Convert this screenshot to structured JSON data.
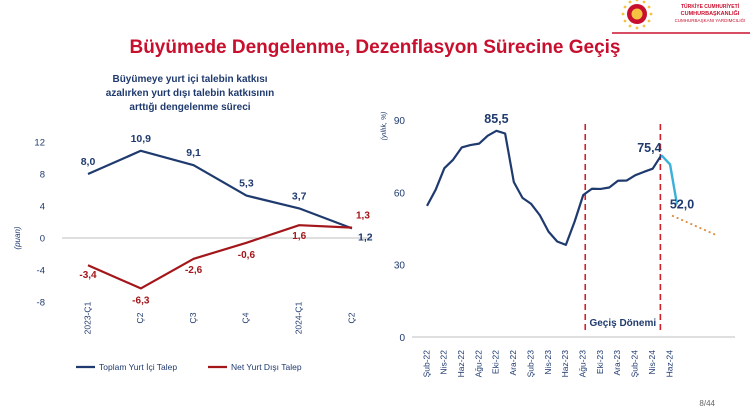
{
  "header": {
    "brand_lines": [
      "TÜRKİYE CUMHURİYETİ",
      "CUMHURBAŞKANLIĞI",
      "CUMHURBAŞKANI YARDIMCILIĞI"
    ],
    "brand_color": "#c8102e"
  },
  "slide": {
    "title": "Büyümede Dengelenme, Dezenflasyon Sürecine Geçiş",
    "page_number": "8/44"
  },
  "colors": {
    "title_red": "#c8102e",
    "navy": "#1f3a6e",
    "dark_red": "#a3161a",
    "light_blue": "#3bb1d9",
    "orange_dotted": "#e08a3c",
    "dashed_red": "#d11f2b",
    "grid": "#d9d9d9"
  },
  "chart_data": [
    {
      "type": "line",
      "title_lines": [
        "Büyümeye yurt içi talebin katkısı",
        "azalırken yurt dışı talebin katkısının",
        "arttığı dengelenme süreci"
      ],
      "ylabel": "(puan)",
      "xlabel": "",
      "ylim": [
        -8,
        12
      ],
      "yticks": [
        "12",
        "8",
        "4",
        "0",
        "-4",
        "-8"
      ],
      "categories": [
        "2023-Ç1",
        "Ç2",
        "Ç3",
        "Ç4",
        "2024-Ç1",
        "Ç2"
      ],
      "series": [
        {
          "name": "Toplam Yurt İçi Talep",
          "values": [
            8.0,
            10.9,
            9.1,
            5.3,
            3.7,
            1.2
          ],
          "labels": [
            "8,0",
            "10,9",
            "9,1",
            "5,3",
            "3,7",
            "1,2"
          ]
        },
        {
          "name": "Net Yurt Dışı Talep",
          "values": [
            -3.4,
            -6.3,
            -2.6,
            -0.6,
            1.6,
            1.3
          ],
          "labels": [
            "-3,4",
            "-6,3",
            "-2,6",
            "-0,6",
            "1,6",
            "1,3"
          ]
        }
      ],
      "grid": false,
      "legend_position": "bottom"
    },
    {
      "type": "line",
      "title": "",
      "ylabel": "(yıllık, %)",
      "xlabel": "",
      "ylim": [
        0,
        90
      ],
      "yticks": [
        "90",
        "60",
        "30",
        "0"
      ],
      "x_tick_labels": [
        "Şub-22",
        "Nis-22",
        "Haz-22",
        "Ağu-22",
        "Eki-22",
        "Ara-22",
        "Şub-23",
        "Nis-23",
        "Haz-23",
        "Ağu-23",
        "Eki-23",
        "Ara-23",
        "Şub-24",
        "Nis-24",
        "Haz-24"
      ],
      "x_months": [
        "Şub-22",
        "Mar-22",
        "Nis-22",
        "May-22",
        "Haz-22",
        "Tem-22",
        "Ağu-22",
        "Eyl-22",
        "Eki-22",
        "Kas-22",
        "Ara-22",
        "Oca-23",
        "Şub-23",
        "Mar-23",
        "Nis-23",
        "May-23",
        "Haz-23",
        "Tem-23",
        "Ağu-23",
        "Eyl-23",
        "Eki-23",
        "Kas-23",
        "Ara-23",
        "Oca-24",
        "Şub-24",
        "Mar-24",
        "Nis-24",
        "May-24",
        "Haz-24",
        "Tem-24"
      ],
      "series": [
        {
          "name": "",
          "style": "solid-navy",
          "x": [
            "Şub-22",
            "Mar-22",
            "Nis-22",
            "May-22",
            "Haz-22",
            "Tem-22",
            "Ağu-22",
            "Eyl-22",
            "Eki-22",
            "Kas-22",
            "Ara-22",
            "Oca-23",
            "Şub-23",
            "Mar-23",
            "Nis-23",
            "May-23",
            "Haz-23",
            "Tem-23",
            "Ağu-23",
            "Eyl-23",
            "Eki-23",
            "Kas-23",
            "Ara-23",
            "Oca-24",
            "Şub-24",
            "Mar-24",
            "Nis-24",
            "May-24"
          ],
          "values": [
            54.4,
            61.1,
            70.0,
            73.5,
            78.6,
            79.6,
            80.2,
            83.5,
            85.5,
            84.4,
            64.3,
            57.7,
            55.2,
            50.5,
            43.7,
            39.6,
            38.2,
            47.8,
            58.9,
            61.5,
            61.4,
            62.0,
            64.8,
            64.9,
            67.1,
            68.5,
            69.8,
            75.4
          ]
        },
        {
          "name": "",
          "style": "solid-lightblue",
          "x": [
            "May-24",
            "Haz-24",
            "Tem-24"
          ],
          "values": [
            75.4,
            71.6,
            61.8
          ]
        },
        {
          "name": "",
          "style": "dotted-orange",
          "x": [
            "Haz-24",
            "Tem-24"
          ],
          "values": [
            52.0,
            42.0
          ],
          "x_end_offset_months": 5.5
        }
      ],
      "annotations": [
        {
          "text": "85,5",
          "x": "Eki-22",
          "value": 85.5
        },
        {
          "text": "75,4",
          "x": "May-24",
          "value": 75.4
        },
        {
          "text": "52,0",
          "x": "Haz-24",
          "value": 52.0
        }
      ],
      "shaded_period": {
        "label": "Geçiş Dönemi",
        "from": "Ağu-23",
        "to": "May-24"
      },
      "grid": false
    }
  ]
}
